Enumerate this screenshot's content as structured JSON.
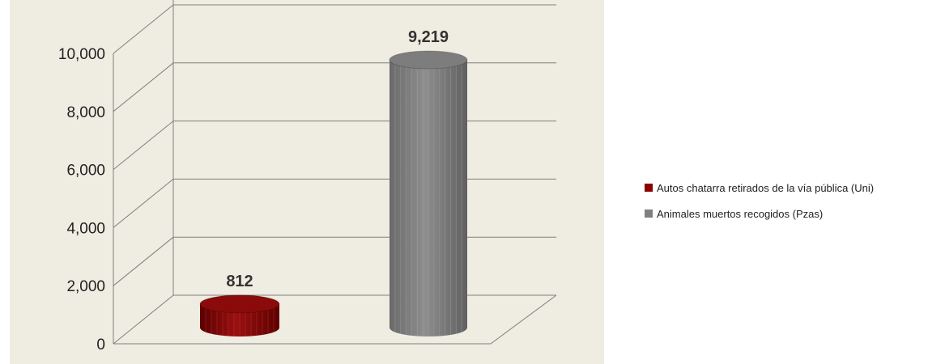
{
  "chart_data": {
    "type": "bar",
    "title": "",
    "xlabel": "",
    "ylabel": "",
    "ylim": [
      0,
      10000
    ],
    "yticks": [
      0,
      2000,
      4000,
      6000,
      8000,
      10000
    ],
    "ytick_labels": [
      "0",
      "2,000",
      "4,000",
      "6,000",
      "8,000",
      "10,000"
    ],
    "grid": true,
    "legend_position": "right",
    "series": [
      {
        "name": "Autos chatarra retirados de la vía pública (Uni)",
        "value": 812,
        "label": "812",
        "color": "#8b0000"
      },
      {
        "name": "Animales muertos recogidos (Pzas)",
        "value": 9219,
        "label": "9,219",
        "color": "#808080"
      }
    ],
    "colors": {
      "background": "#efece1",
      "gridline": "#7f7f7f"
    }
  }
}
